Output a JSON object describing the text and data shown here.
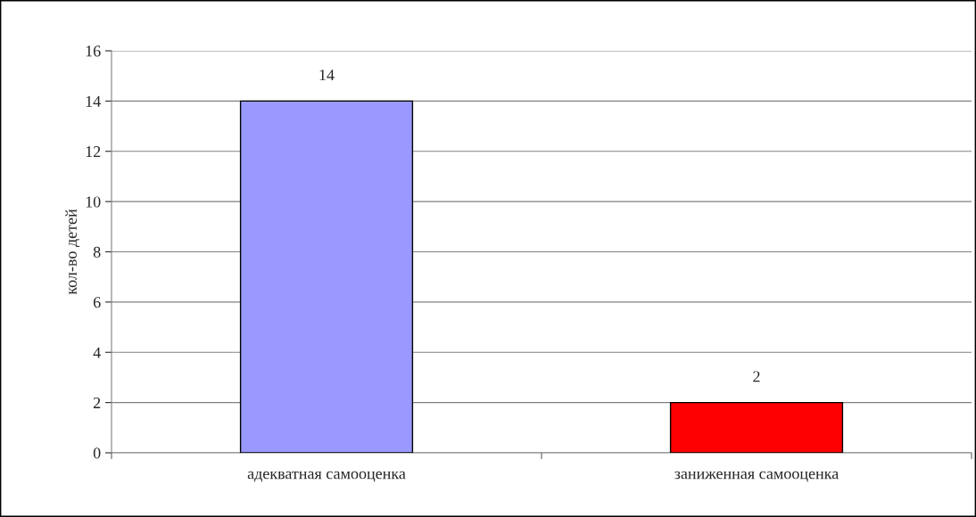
{
  "chart_data": {
    "type": "bar",
    "ylabel": "кол-во детей",
    "categories": [
      "адекватная самооценка",
      "заниженная самооценка"
    ],
    "values": [
      14,
      2
    ],
    "colors": [
      "#9999ff",
      "#ff0000"
    ],
    "ylim": [
      0,
      16
    ],
    "yticks": [
      0,
      2,
      4,
      6,
      8,
      10,
      12,
      14,
      16
    ],
    "grid": "y",
    "data_labels": true,
    "legend": false
  }
}
